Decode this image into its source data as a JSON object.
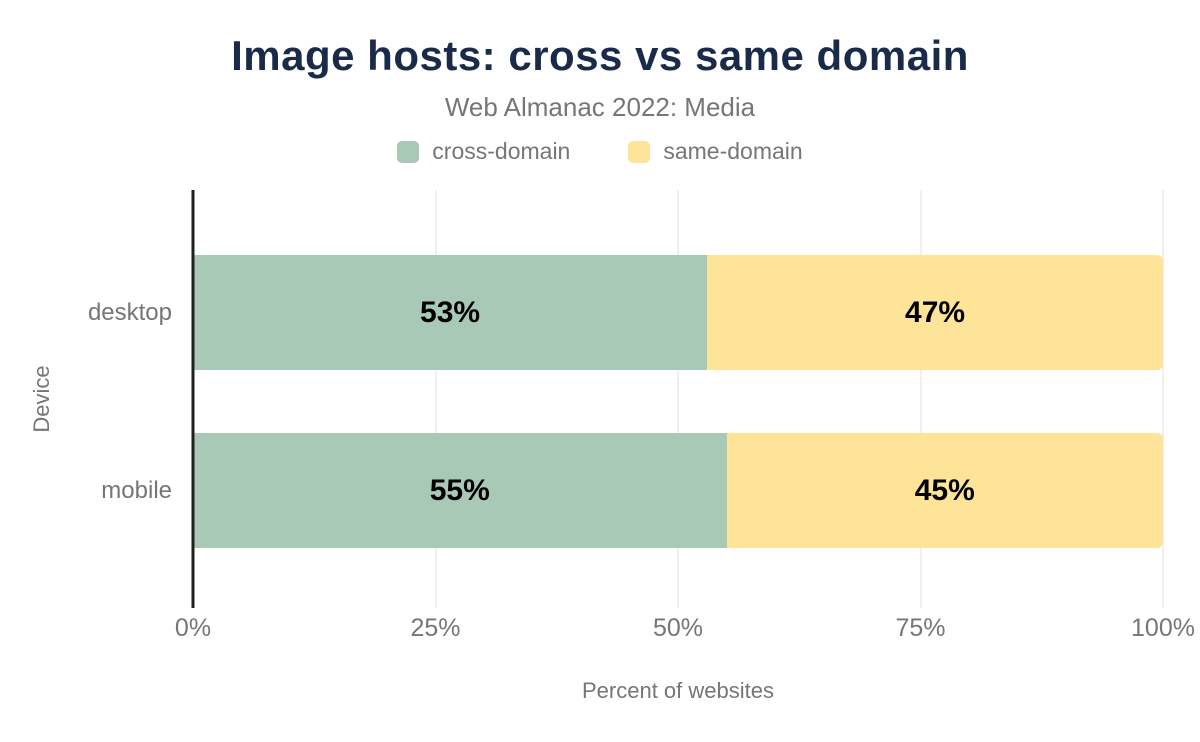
{
  "title": "Image hosts: cross vs same domain",
  "subtitle": "Web Almanac 2022: Media",
  "legend": {
    "items": [
      {
        "label": "cross-domain",
        "color": "#a7c9b6"
      },
      {
        "label": "same-domain",
        "color": "#fde498"
      }
    ]
  },
  "colors": {
    "title_navy": "#1a2b49",
    "muted_text": "#767676",
    "axis_line": "#212121",
    "gridline": "#f0f0f0",
    "cross_domain_green": "#a7c9b6",
    "same_domain_yellow": "#fde498",
    "value_label": "#000000"
  },
  "chart_data": {
    "type": "bar",
    "orientation": "horizontal",
    "stacked": true,
    "title": "Image hosts: cross vs same domain",
    "subtitle": "Web Almanac 2022: Media",
    "categories": [
      "desktop",
      "mobile"
    ],
    "series": [
      {
        "name": "cross-domain",
        "color": "#a7c9b6",
        "values": [
          53,
          55
        ]
      },
      {
        "name": "same-domain",
        "color": "#fde498",
        "values": [
          47,
          45
        ]
      }
    ],
    "value_labels": [
      [
        "53%",
        "47%"
      ],
      [
        "55%",
        "45%"
      ]
    ],
    "xlabel": "Percent of websites",
    "ylabel": "Device",
    "xlim": [
      0,
      100
    ],
    "xticks": [
      {
        "value": 0,
        "label": "0%"
      },
      {
        "value": 25,
        "label": "25%"
      },
      {
        "value": 50,
        "label": "50%"
      },
      {
        "value": 75,
        "label": "75%"
      },
      {
        "value": 100,
        "label": "100%"
      }
    ],
    "grid": true,
    "legend_position": "top-center"
  }
}
